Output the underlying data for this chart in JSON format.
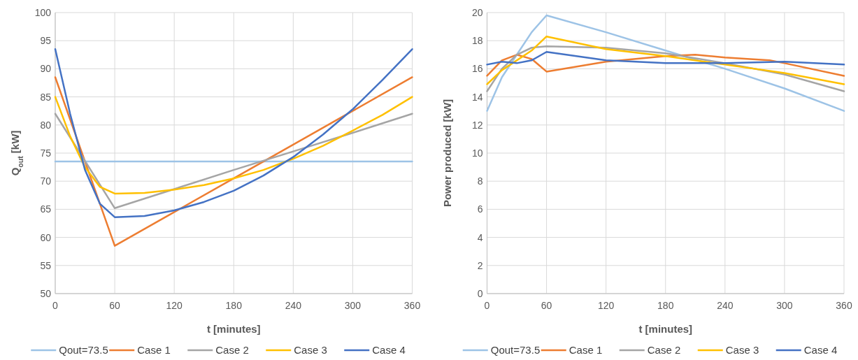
{
  "chart_data": [
    {
      "type": "line",
      "xlabel": "t [minutes]",
      "ylabel": "Q$_{out}$ [kW]",
      "xlim": [
        0,
        360
      ],
      "xticks": [
        0,
        60,
        120,
        180,
        240,
        300,
        360
      ],
      "ylim": [
        50,
        100
      ],
      "yticks": [
        50,
        55,
        60,
        65,
        70,
        75,
        80,
        85,
        90,
        95,
        100
      ],
      "grid": true,
      "legend": "bottom",
      "marker": "none",
      "line_style": "solid",
      "series": [
        {
          "name": "Qout=73.5",
          "color": "#9dc3e6",
          "x": [
            0,
            360
          ],
          "values": [
            73.5,
            73.5
          ]
        },
        {
          "name": "Case 1",
          "color": "#ed7d31",
          "x": [
            0,
            60,
            120,
            180,
            240,
            300,
            360
          ],
          "values": [
            88.5,
            58.5,
            64.5,
            70.5,
            76.5,
            82.5,
            88.5
          ]
        },
        {
          "name": "Case 2",
          "color": "#a5a5a5",
          "x": [
            0,
            60,
            120,
            180,
            240,
            300,
            360
          ],
          "values": [
            82,
            65.2,
            68.6,
            72,
            75.3,
            78.6,
            82
          ]
        },
        {
          "name": "Case 3",
          "color": "#ffc000",
          "x": [
            0,
            15,
            30,
            45,
            60,
            90,
            120,
            150,
            180,
            210,
            240,
            270,
            300,
            330,
            360
          ],
          "values": [
            85,
            78,
            72.5,
            69,
            67.8,
            67.9,
            68.5,
            69.3,
            70.5,
            72,
            74,
            76.3,
            79,
            81.8,
            85
          ]
        },
        {
          "name": "Case 4",
          "color": "#4472c4",
          "x": [
            0,
            15,
            30,
            45,
            60,
            90,
            120,
            150,
            180,
            210,
            240,
            270,
            300,
            330,
            360
          ],
          "values": [
            93.5,
            82,
            72,
            66,
            63.6,
            63.8,
            64.8,
            66.3,
            68.3,
            71,
            74.3,
            78.3,
            82.8,
            88,
            93.5
          ]
        }
      ]
    },
    {
      "type": "line",
      "xlabel": "t [minutes]",
      "ylabel": "Power produced [kW]",
      "xlim": [
        0,
        360
      ],
      "xticks": [
        0,
        60,
        120,
        180,
        240,
        300,
        360
      ],
      "ylim": [
        0,
        20
      ],
      "yticks": [
        0,
        2,
        4,
        6,
        8,
        10,
        12,
        14,
        16,
        18,
        20
      ],
      "grid": true,
      "legend": "bottom",
      "marker": "none",
      "line_style": "solid",
      "series": [
        {
          "name": "Qout=73.5",
          "color": "#9dc3e6",
          "x": [
            0,
            15,
            30,
            45,
            60,
            120,
            180,
            240,
            300,
            360
          ],
          "values": [
            13,
            15.4,
            17,
            18.6,
            19.8,
            18.6,
            17.3,
            16,
            14.6,
            13
          ]
        },
        {
          "name": "Case 1",
          "color": "#ed7d31",
          "x": [
            0,
            15,
            30,
            45,
            60,
            120,
            180,
            210,
            240,
            285,
            300,
            360
          ],
          "values": [
            15.5,
            16.6,
            17,
            16.7,
            15.8,
            16.5,
            16.9,
            17,
            16.8,
            16.6,
            16.4,
            15.5
          ]
        },
        {
          "name": "Case 2",
          "color": "#a5a5a5",
          "x": [
            0,
            15,
            30,
            45,
            60,
            120,
            180,
            240,
            300,
            360
          ],
          "values": [
            14.4,
            16,
            17,
            17.5,
            17.6,
            17.5,
            17.1,
            16.4,
            15.6,
            14.4
          ]
        },
        {
          "name": "Case 3",
          "color": "#ffc000",
          "x": [
            0,
            15,
            30,
            45,
            60,
            120,
            180,
            240,
            300,
            360
          ],
          "values": [
            14.9,
            15.9,
            16.6,
            17.3,
            18.3,
            17.4,
            16.9,
            16.3,
            15.7,
            14.9
          ]
        },
        {
          "name": "Case 4",
          "color": "#4472c4",
          "x": [
            0,
            15,
            30,
            45,
            60,
            120,
            180,
            240,
            300,
            360
          ],
          "values": [
            16.3,
            16.5,
            16.4,
            16.6,
            17.2,
            16.6,
            16.4,
            16.4,
            16.5,
            16.3
          ]
        }
      ]
    }
  ]
}
